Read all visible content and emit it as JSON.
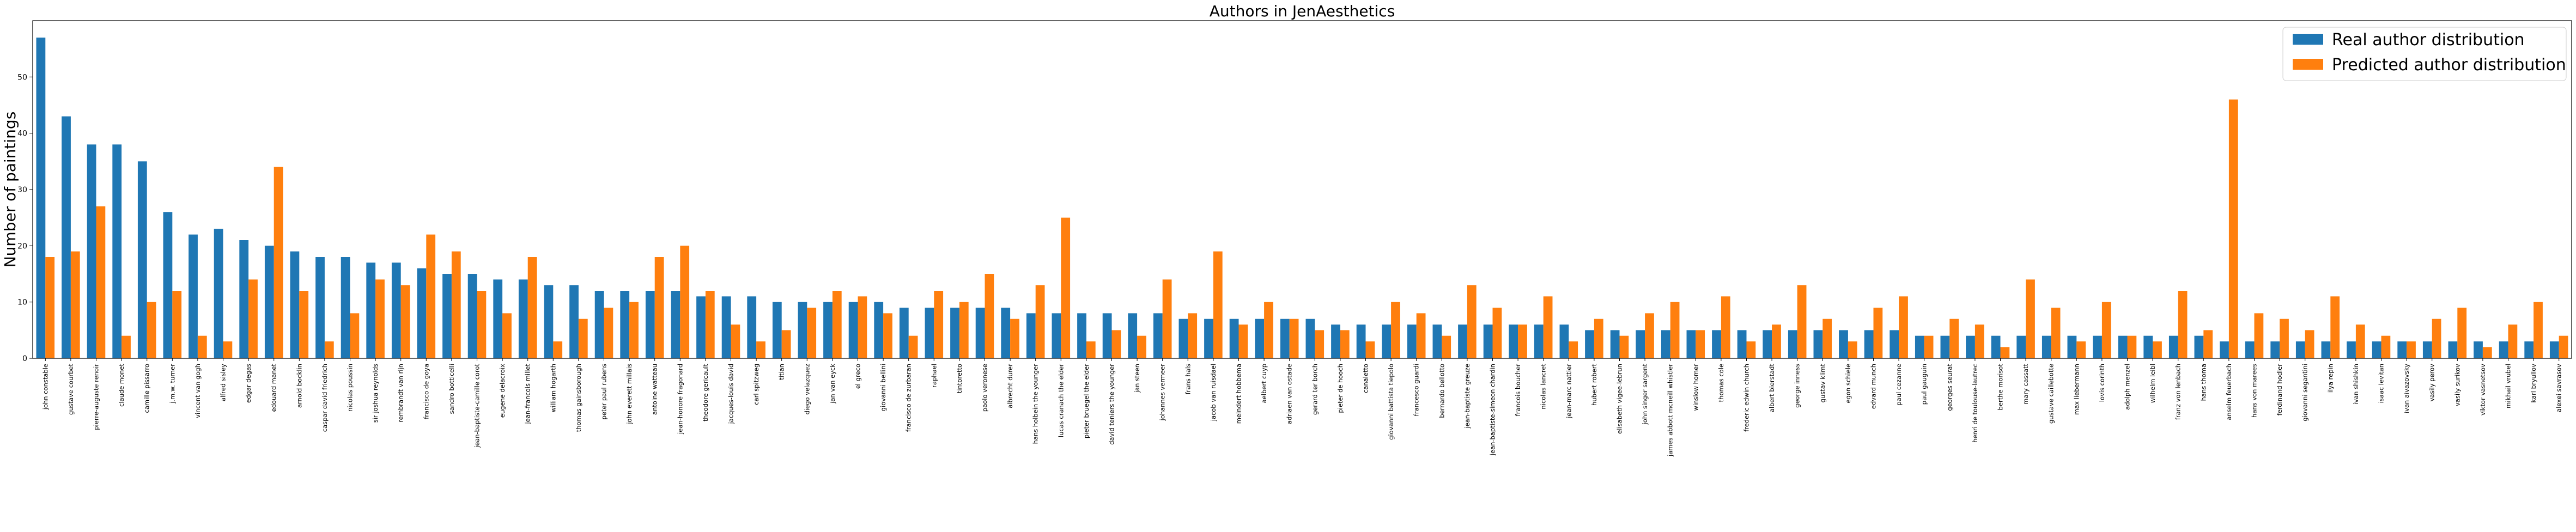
{
  "colors": {
    "real": "#1f77b4",
    "predicted": "#ff7f0e"
  },
  "chart_data": {
    "type": "bar",
    "title": "Authors in JenAesthetics",
    "xlabel": "",
    "ylabel": "Number of paintings",
    "ylim": [
      0,
      60
    ],
    "yticks": [
      0,
      10,
      20,
      30,
      40,
      50
    ],
    "legend_position": "top-right",
    "grid": false,
    "categories": [
      "john constable",
      "gustave courbet",
      "pierre-auguste renoir",
      "claude monet",
      "camille pissarro",
      "j.m.w. turner",
      "vincent van gogh",
      "alfred sisley",
      "edgar degas",
      "edouard manet",
      "arnold bocklin",
      "caspar david friedrich",
      "nicolas poussin",
      "sir joshua reynolds",
      "rembrandt van rijn",
      "francisco de goya",
      "sandro botticelli",
      "jean-baptiste-camille corot",
      "eugene delacroix",
      "jean-francois millet",
      "william hogarth",
      "thomas gainsborough",
      "peter paul rubens",
      "john everett millais",
      "antoine watteau",
      "jean-honore fragonard",
      "theodore gericault",
      "jacques-louis david",
      "carl spitzweg",
      "titian",
      "diego velazquez",
      "jan van eyck",
      "el greco",
      "giovanni bellini",
      "francisco de zurbaran",
      "raphael",
      "tintoretto",
      "paolo veronese",
      "albrecht durer",
      "hans holbein the younger",
      "lucas cranach the elder",
      "pieter bruegel the elder",
      "david teniers the younger",
      "jan steen",
      "johannes vermeer",
      "frans hals",
      "jacob van ruisdael",
      "meindert hobbema",
      "aelbert cuyp",
      "adriaen van ostade",
      "gerard ter borch",
      "pieter de hooch",
      "canaletto",
      "giovanni battista tiepolo",
      "francesco guardi",
      "bernardo bellotto",
      "jean-baptiste greuze",
      "jean-baptiste-simeon chardin",
      "francois boucher",
      "nicolas lancret",
      "jean-marc nattier",
      "hubert robert",
      "elisabeth vigee-lebrun",
      "john singer sargent",
      "james abbott mcneill whistler",
      "winslow homer",
      "thomas cole",
      "frederic edwin church",
      "albert bierstadt",
      "george inness",
      "gustav klimt",
      "egon schiele",
      "edvard munch",
      "paul cezanne",
      "paul gauguin",
      "georges seurat",
      "henri de toulouse-lautrec",
      "berthe morisot",
      "mary cassatt",
      "gustave caillebotte",
      "max liebermann",
      "lovis corinth",
      "adolph menzel",
      "wilhelm leibl",
      "franz von lenbach",
      "hans thoma",
      "anselm feuerbach",
      "hans von marees",
      "ferdinand hodler",
      "giovanni segantini",
      "ilya repin",
      "ivan shishkin",
      "isaac levitan",
      "ivan aivazovsky",
      "vasily perov",
      "vasily surikov",
      "viktor vasnetsov",
      "mikhail vrubel",
      "karl bryullov",
      "alexei savrasov"
    ],
    "series": [
      {
        "name": "Real author distribution",
        "values": [
          57,
          43,
          38,
          38,
          35,
          26,
          22,
          23,
          21,
          20,
          19,
          18,
          18,
          17,
          17,
          16,
          15,
          15,
          14,
          14,
          13,
          13,
          12,
          12,
          12,
          12,
          11,
          11,
          11,
          10,
          10,
          10,
          10,
          10,
          9,
          9,
          9,
          9,
          9,
          8,
          8,
          8,
          8,
          8,
          8,
          7,
          7,
          7,
          7,
          7,
          7,
          6,
          6,
          6,
          6,
          6,
          6,
          6,
          6,
          6,
          6,
          5,
          5,
          5,
          5,
          5,
          5,
          5,
          5,
          5,
          5,
          5,
          5,
          5,
          4,
          4,
          4,
          4,
          4,
          4,
          4,
          4,
          4,
          4,
          4,
          4,
          3,
          3,
          3,
          3,
          3,
          3,
          3,
          3,
          3,
          3,
          3,
          3,
          3,
          3
        ]
      },
      {
        "name": "Predicted author distribution",
        "values": [
          18,
          19,
          27,
          4,
          10,
          12,
          4,
          3,
          14,
          34,
          12,
          3,
          8,
          14,
          13,
          22,
          19,
          12,
          8,
          18,
          3,
          7,
          9,
          10,
          18,
          20,
          12,
          6,
          3,
          5,
          9,
          12,
          11,
          8,
          4,
          12,
          10,
          15,
          7,
          13,
          25,
          3,
          5,
          4,
          14,
          8,
          19,
          6,
          10,
          7,
          5,
          5,
          3,
          10,
          8,
          4,
          13,
          9,
          6,
          11,
          3,
          7,
          4,
          8,
          10,
          5,
          11,
          3,
          6,
          13,
          7,
          3,
          9,
          11,
          4,
          7,
          6,
          2,
          14,
          9,
          3,
          10,
          4,
          3,
          12,
          5,
          46,
          8,
          7,
          5,
          11,
          6,
          4,
          3,
          7,
          9,
          2,
          6,
          10,
          4
        ]
      }
    ]
  }
}
